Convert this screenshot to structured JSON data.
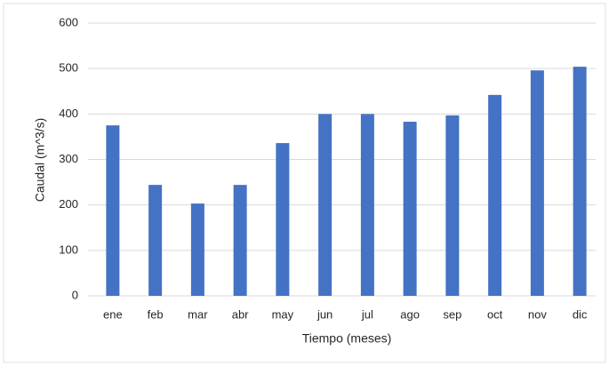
{
  "chart_data": {
    "type": "bar",
    "x_label": "Tiempo (meses)",
    "y_label": "Caudal (m^3/s)",
    "categories": [
      "ene",
      "feb",
      "mar",
      "abr",
      "may",
      "jun",
      "jul",
      "ago",
      "sep",
      "oct",
      "nov",
      "dic"
    ],
    "values": [
      375,
      244,
      203,
      244,
      336,
      400,
      400,
      383,
      397,
      442,
      496,
      504
    ],
    "color": "#4472c4",
    "ylim": [
      0,
      600
    ],
    "yticks": [
      0,
      100,
      200,
      300,
      400,
      500,
      600
    ],
    "grid": true
  }
}
